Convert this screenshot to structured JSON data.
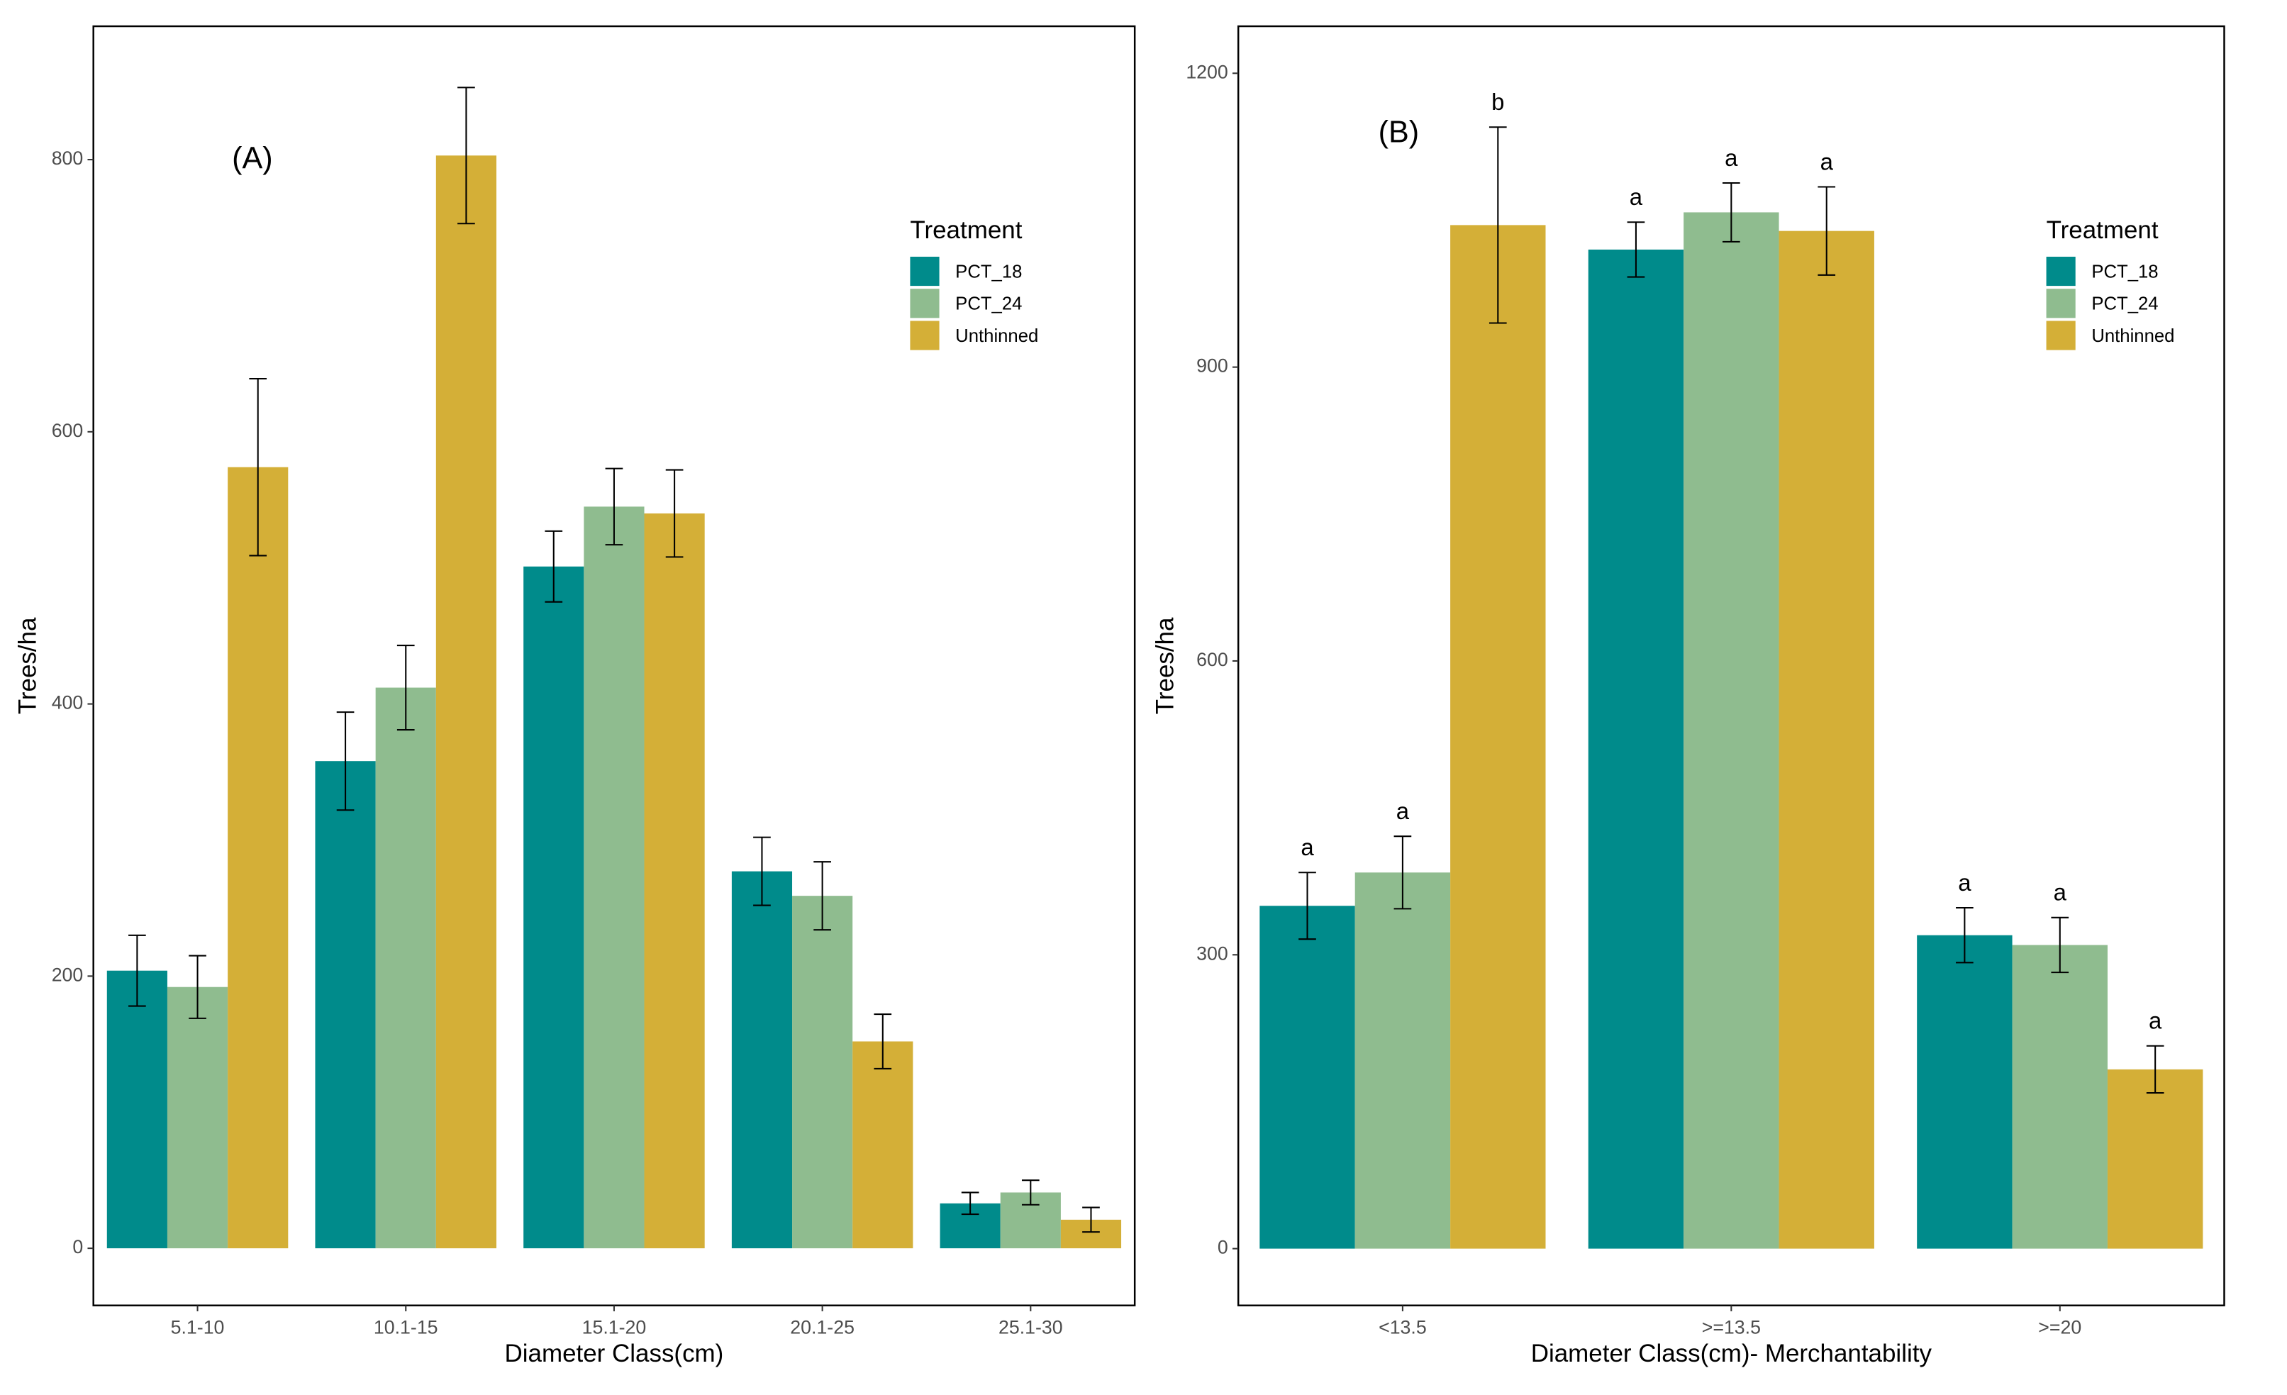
{
  "chart_data": [
    {
      "type": "bar",
      "panel_label": "(A)",
      "x_label": "Diameter Class(cm)",
      "y_label": "Trees/ha",
      "legend_title": "Treatment",
      "categories": [
        "5.1-10",
        "10.1-15",
        "15.1-20",
        "20.1-25",
        "25.1-30"
      ],
      "ylim": [
        -42,
        898
      ],
      "yticks": [
        0,
        200,
        400,
        600,
        800
      ],
      "series": [
        {
          "name": "PCT_18",
          "color": "#008b8b",
          "values": [
            204,
            358,
            501,
            277,
            33
          ],
          "errors": [
            26,
            36,
            26,
            25,
            8
          ]
        },
        {
          "name": "PCT_24",
          "color": "#8fbc8f",
          "values": [
            192,
            412,
            545,
            259,
            41
          ],
          "errors": [
            23,
            31,
            28,
            25,
            9
          ]
        },
        {
          "name": "Unthinned",
          "color": "#d4af37",
          "values": [
            574,
            803,
            540,
            152,
            21
          ],
          "errors": [
            65,
            50,
            32,
            20,
            9
          ]
        }
      ]
    },
    {
      "type": "bar",
      "panel_label": "(B)",
      "x_label": "Diameter Class(cm)- Merchantability",
      "y_label": "Trees/ha",
      "legend_title": "Treatment",
      "categories": [
        "<13.5",
        ">=13.5",
        ">=20"
      ],
      "ylim": [
        -58,
        1248
      ],
      "yticks": [
        0,
        300,
        600,
        900,
        1200
      ],
      "series": [
        {
          "name": "PCT_18",
          "color": "#008b8b",
          "values": [
            350,
            1020,
            320
          ],
          "errors": [
            34,
            28,
            28
          ],
          "letters": [
            "a",
            "a",
            "a"
          ]
        },
        {
          "name": "PCT_24",
          "color": "#8fbc8f",
          "values": [
            384,
            1058,
            310
          ],
          "errors": [
            37,
            30,
            28
          ],
          "letters": [
            "a",
            "a",
            "a"
          ]
        },
        {
          "name": "Unthinned",
          "color": "#d4af37",
          "values": [
            1045,
            1039,
            183
          ],
          "errors": [
            100,
            45,
            24
          ],
          "letters": [
            "b",
            "a",
            "a"
          ]
        }
      ]
    }
  ]
}
